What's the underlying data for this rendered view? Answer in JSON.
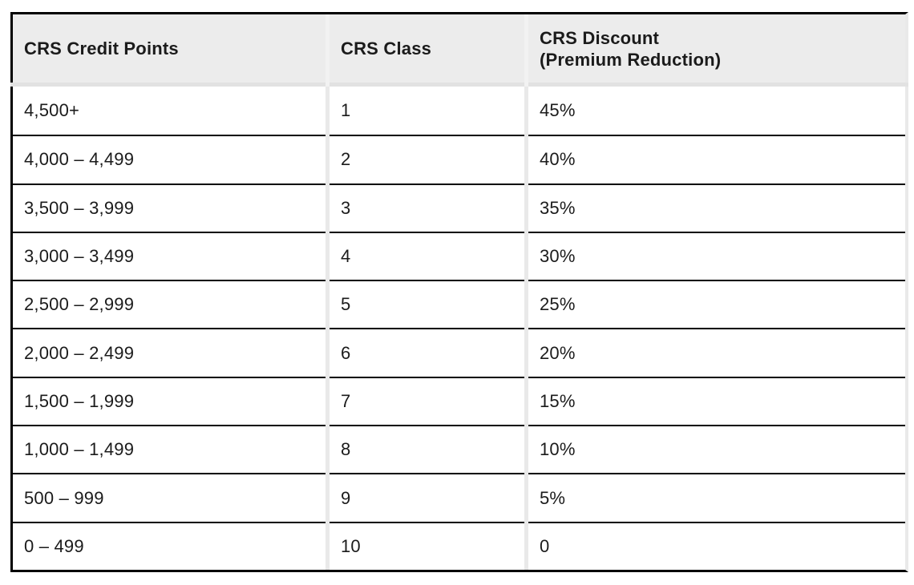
{
  "table": {
    "columns": [
      {
        "label": "CRS Credit Points"
      },
      {
        "label": "CRS Class"
      },
      {
        "label": "CRS Discount\n(Premium Reduction)"
      }
    ],
    "rows": [
      {
        "credit_points": "4,500+",
        "crs_class": "1",
        "discount": "45%"
      },
      {
        "credit_points": "4,000 – 4,499",
        "crs_class": "2",
        "discount": "40%"
      },
      {
        "credit_points": "3,500 – 3,999",
        "crs_class": "3",
        "discount": "35%"
      },
      {
        "credit_points": "3,000 – 3,499",
        "crs_class": "4",
        "discount": "30%"
      },
      {
        "credit_points": "2,500 – 2,999",
        "crs_class": "5",
        "discount": "25%"
      },
      {
        "credit_points": "2,000 – 2,499",
        "crs_class": "6",
        "discount": "20%"
      },
      {
        "credit_points": "1,500 – 1,999",
        "crs_class": "7",
        "discount": "15%"
      },
      {
        "credit_points": "1,000 – 1,499",
        "crs_class": "8",
        "discount": "10%"
      },
      {
        "credit_points": "500 – 999",
        "crs_class": "9",
        "discount": "5%"
      },
      {
        "credit_points": "0 – 499",
        "crs_class": "10",
        "discount": "0"
      }
    ]
  },
  "chart_data": {
    "type": "table",
    "title": "",
    "columns": [
      "CRS Credit Points",
      "CRS Class",
      "CRS Discount (Premium Reduction)"
    ],
    "rows": [
      [
        "4,500+",
        1,
        "45%"
      ],
      [
        "4,000 – 4,499",
        2,
        "40%"
      ],
      [
        "3,500 – 3,999",
        3,
        "35%"
      ],
      [
        "3,000 – 3,499",
        4,
        "30%"
      ],
      [
        "2,500 – 2,999",
        5,
        "25%"
      ],
      [
        "2,000 – 2,499",
        6,
        "20%"
      ],
      [
        "1,500 – 1,999",
        7,
        "15%"
      ],
      [
        "1,000 – 1,499",
        8,
        "10%"
      ],
      [
        "500 – 999",
        9,
        "5%"
      ],
      [
        "0 – 499",
        10,
        "0"
      ]
    ]
  },
  "colors": {
    "page_bg": "#ffffff",
    "header_bg": "#ececec",
    "header_separator": "#e2e2e2",
    "column_divider": "#e9e9e9",
    "column_divider_header": "#f2f2f2",
    "row_border": "#000000",
    "outer_border": "#000000",
    "text": "#1b1b1b"
  }
}
